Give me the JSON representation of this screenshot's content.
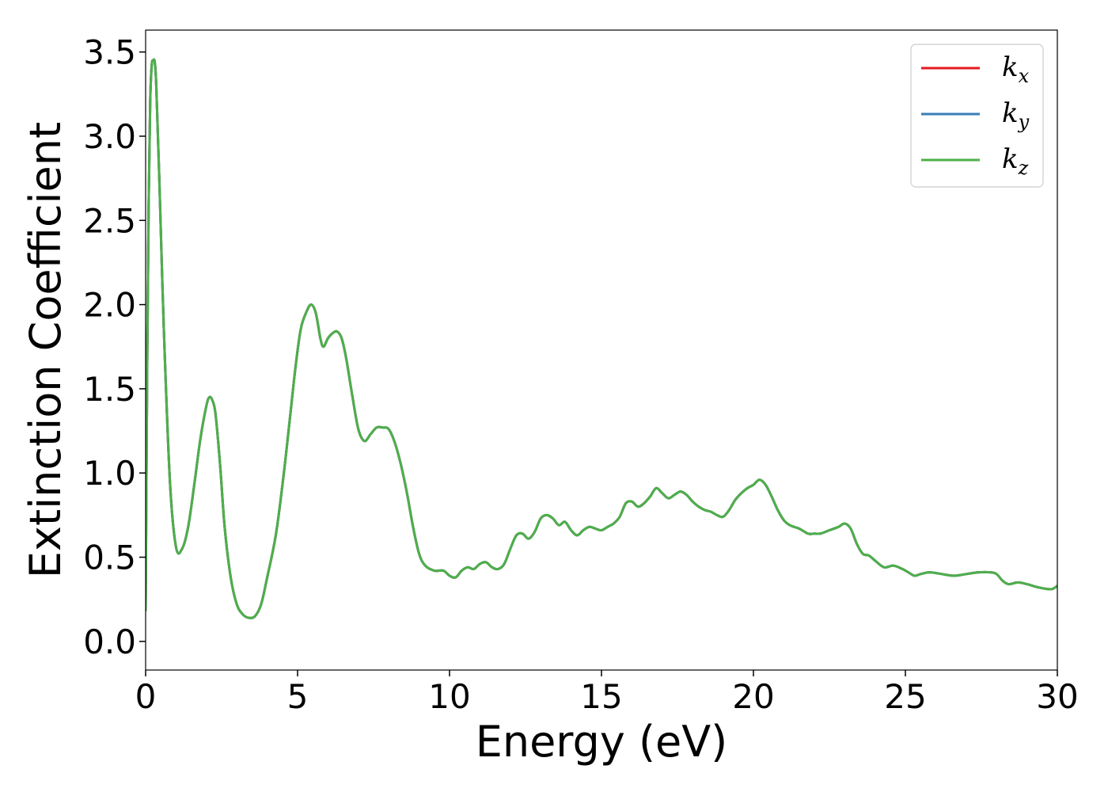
{
  "chart_data": {
    "type": "line",
    "title": "",
    "xlabel": "Energy (eV)",
    "ylabel": "Extinction Coefficient",
    "xlim": [
      0,
      30
    ],
    "ylim": [
      -0.17,
      3.63
    ],
    "xticks": [
      "0",
      "5",
      "10",
      "15",
      "20",
      "25",
      "30"
    ],
    "yticks": [
      "0.0",
      "0.5",
      "1.0",
      "1.5",
      "2.0",
      "2.5",
      "3.0",
      "3.5"
    ],
    "grid": false,
    "legend": "top-right",
    "legend_entries": [
      {
        "base": "k",
        "sub": "x",
        "color": "#e41a1c"
      },
      {
        "base": "k",
        "sub": "y",
        "color": "#377eb8"
      },
      {
        "base": "k",
        "sub": "z",
        "color": "#4daf4a"
      }
    ],
    "x": [
      0.0,
      0.05,
      0.1,
      0.15,
      0.2,
      0.25,
      0.3,
      0.35,
      0.45,
      0.6,
      0.8,
      1.0,
      1.2,
      1.4,
      1.6,
      1.8,
      2.0,
      2.1,
      2.2,
      2.3,
      2.45,
      2.6,
      2.8,
      3.0,
      3.2,
      3.4,
      3.6,
      3.8,
      4.0,
      4.3,
      4.6,
      4.9,
      5.1,
      5.3,
      5.45,
      5.6,
      5.75,
      5.85,
      6.0,
      6.15,
      6.3,
      6.45,
      6.6,
      6.8,
      7.0,
      7.2,
      7.4,
      7.6,
      7.8,
      8.0,
      8.2,
      8.4,
      8.6,
      8.8,
      9.0,
      9.2,
      9.5,
      9.8,
      10.0,
      10.2,
      10.4,
      10.6,
      10.8,
      11.0,
      11.2,
      11.4,
      11.6,
      11.8,
      12.0,
      12.2,
      12.4,
      12.6,
      12.8,
      13.0,
      13.2,
      13.4,
      13.6,
      13.8,
      14.0,
      14.2,
      14.4,
      14.6,
      14.8,
      15.0,
      15.2,
      15.4,
      15.6,
      15.8,
      16.0,
      16.2,
      16.4,
      16.6,
      16.8,
      17.0,
      17.2,
      17.4,
      17.6,
      17.8,
      18.0,
      18.2,
      18.4,
      18.6,
      18.8,
      19.0,
      19.2,
      19.4,
      19.6,
      19.8,
      20.0,
      20.2,
      20.4,
      20.6,
      20.8,
      21.0,
      21.2,
      21.5,
      21.8,
      22.0,
      22.2,
      22.5,
      22.8,
      23.0,
      23.2,
      23.4,
      23.6,
      23.8,
      24.0,
      24.3,
      24.6,
      24.9,
      25.1,
      25.3,
      25.5,
      25.8,
      26.2,
      26.6,
      27.0,
      27.4,
      27.8,
      28.0,
      28.2,
      28.4,
      28.7,
      29.0,
      29.4,
      29.8,
      30.0
    ],
    "series": [
      {
        "name": "k_x",
        "color": "#e41a1c",
        "values": [
          0.18,
          1.6,
          2.6,
          3.2,
          3.42,
          3.45,
          3.44,
          3.3,
          2.75,
          1.85,
          0.95,
          0.56,
          0.55,
          0.68,
          0.93,
          1.2,
          1.4,
          1.45,
          1.43,
          1.35,
          1.05,
          0.68,
          0.38,
          0.22,
          0.16,
          0.14,
          0.15,
          0.22,
          0.38,
          0.65,
          1.08,
          1.58,
          1.85,
          1.96,
          2.0,
          1.95,
          1.8,
          1.75,
          1.8,
          1.83,
          1.84,
          1.8,
          1.68,
          1.46,
          1.26,
          1.19,
          1.23,
          1.27,
          1.27,
          1.26,
          1.18,
          1.05,
          0.88,
          0.68,
          0.52,
          0.45,
          0.42,
          0.42,
          0.39,
          0.38,
          0.42,
          0.44,
          0.43,
          0.46,
          0.47,
          0.44,
          0.43,
          0.46,
          0.55,
          0.63,
          0.64,
          0.61,
          0.65,
          0.73,
          0.75,
          0.73,
          0.69,
          0.71,
          0.66,
          0.63,
          0.66,
          0.68,
          0.67,
          0.66,
          0.68,
          0.7,
          0.74,
          0.82,
          0.83,
          0.8,
          0.82,
          0.86,
          0.91,
          0.88,
          0.85,
          0.87,
          0.89,
          0.87,
          0.83,
          0.8,
          0.78,
          0.77,
          0.75,
          0.74,
          0.78,
          0.84,
          0.88,
          0.91,
          0.93,
          0.96,
          0.93,
          0.86,
          0.78,
          0.72,
          0.69,
          0.67,
          0.64,
          0.64,
          0.64,
          0.66,
          0.68,
          0.7,
          0.67,
          0.58,
          0.52,
          0.51,
          0.48,
          0.44,
          0.45,
          0.43,
          0.41,
          0.39,
          0.4,
          0.41,
          0.4,
          0.39,
          0.4,
          0.41,
          0.41,
          0.4,
          0.36,
          0.34,
          0.35,
          0.34,
          0.32,
          0.31,
          0.33
        ]
      },
      {
        "name": "k_y",
        "color": "#377eb8",
        "values": [
          0.18,
          1.6,
          2.6,
          3.2,
          3.42,
          3.45,
          3.44,
          3.3,
          2.75,
          1.85,
          0.95,
          0.56,
          0.55,
          0.68,
          0.93,
          1.2,
          1.4,
          1.45,
          1.43,
          1.35,
          1.05,
          0.68,
          0.38,
          0.22,
          0.16,
          0.14,
          0.15,
          0.22,
          0.38,
          0.65,
          1.08,
          1.58,
          1.85,
          1.96,
          2.0,
          1.95,
          1.8,
          1.75,
          1.8,
          1.83,
          1.84,
          1.8,
          1.68,
          1.46,
          1.26,
          1.19,
          1.23,
          1.27,
          1.27,
          1.26,
          1.18,
          1.05,
          0.88,
          0.68,
          0.52,
          0.45,
          0.42,
          0.42,
          0.39,
          0.38,
          0.42,
          0.44,
          0.43,
          0.46,
          0.47,
          0.44,
          0.43,
          0.46,
          0.55,
          0.63,
          0.64,
          0.61,
          0.65,
          0.73,
          0.75,
          0.73,
          0.69,
          0.71,
          0.66,
          0.63,
          0.66,
          0.68,
          0.67,
          0.66,
          0.68,
          0.7,
          0.74,
          0.82,
          0.83,
          0.8,
          0.82,
          0.86,
          0.91,
          0.88,
          0.85,
          0.87,
          0.89,
          0.87,
          0.83,
          0.8,
          0.78,
          0.77,
          0.75,
          0.74,
          0.78,
          0.84,
          0.88,
          0.91,
          0.93,
          0.96,
          0.93,
          0.86,
          0.78,
          0.72,
          0.69,
          0.67,
          0.64,
          0.64,
          0.64,
          0.66,
          0.68,
          0.7,
          0.67,
          0.58,
          0.52,
          0.51,
          0.48,
          0.44,
          0.45,
          0.43,
          0.41,
          0.39,
          0.4,
          0.41,
          0.4,
          0.39,
          0.4,
          0.41,
          0.41,
          0.4,
          0.36,
          0.34,
          0.35,
          0.34,
          0.32,
          0.31,
          0.33
        ]
      },
      {
        "name": "k_z",
        "color": "#4daf4a",
        "values": [
          0.18,
          1.6,
          2.6,
          3.2,
          3.42,
          3.45,
          3.44,
          3.3,
          2.75,
          1.85,
          0.95,
          0.56,
          0.55,
          0.68,
          0.93,
          1.2,
          1.4,
          1.45,
          1.43,
          1.35,
          1.05,
          0.68,
          0.38,
          0.22,
          0.16,
          0.14,
          0.15,
          0.22,
          0.38,
          0.65,
          1.08,
          1.58,
          1.85,
          1.96,
          2.0,
          1.95,
          1.8,
          1.75,
          1.8,
          1.83,
          1.84,
          1.8,
          1.68,
          1.46,
          1.26,
          1.19,
          1.23,
          1.27,
          1.27,
          1.26,
          1.18,
          1.05,
          0.88,
          0.68,
          0.52,
          0.45,
          0.42,
          0.42,
          0.39,
          0.38,
          0.42,
          0.44,
          0.43,
          0.46,
          0.47,
          0.44,
          0.43,
          0.46,
          0.55,
          0.63,
          0.64,
          0.61,
          0.65,
          0.73,
          0.75,
          0.73,
          0.69,
          0.71,
          0.66,
          0.63,
          0.66,
          0.68,
          0.67,
          0.66,
          0.68,
          0.7,
          0.74,
          0.82,
          0.83,
          0.8,
          0.82,
          0.86,
          0.91,
          0.88,
          0.85,
          0.87,
          0.89,
          0.87,
          0.83,
          0.8,
          0.78,
          0.77,
          0.75,
          0.74,
          0.78,
          0.84,
          0.88,
          0.91,
          0.93,
          0.96,
          0.93,
          0.86,
          0.78,
          0.72,
          0.69,
          0.67,
          0.64,
          0.64,
          0.64,
          0.66,
          0.68,
          0.7,
          0.67,
          0.58,
          0.52,
          0.51,
          0.48,
          0.44,
          0.45,
          0.43,
          0.41,
          0.39,
          0.4,
          0.41,
          0.4,
          0.39,
          0.4,
          0.41,
          0.41,
          0.4,
          0.36,
          0.34,
          0.35,
          0.34,
          0.32,
          0.31,
          0.33
        ]
      }
    ]
  }
}
